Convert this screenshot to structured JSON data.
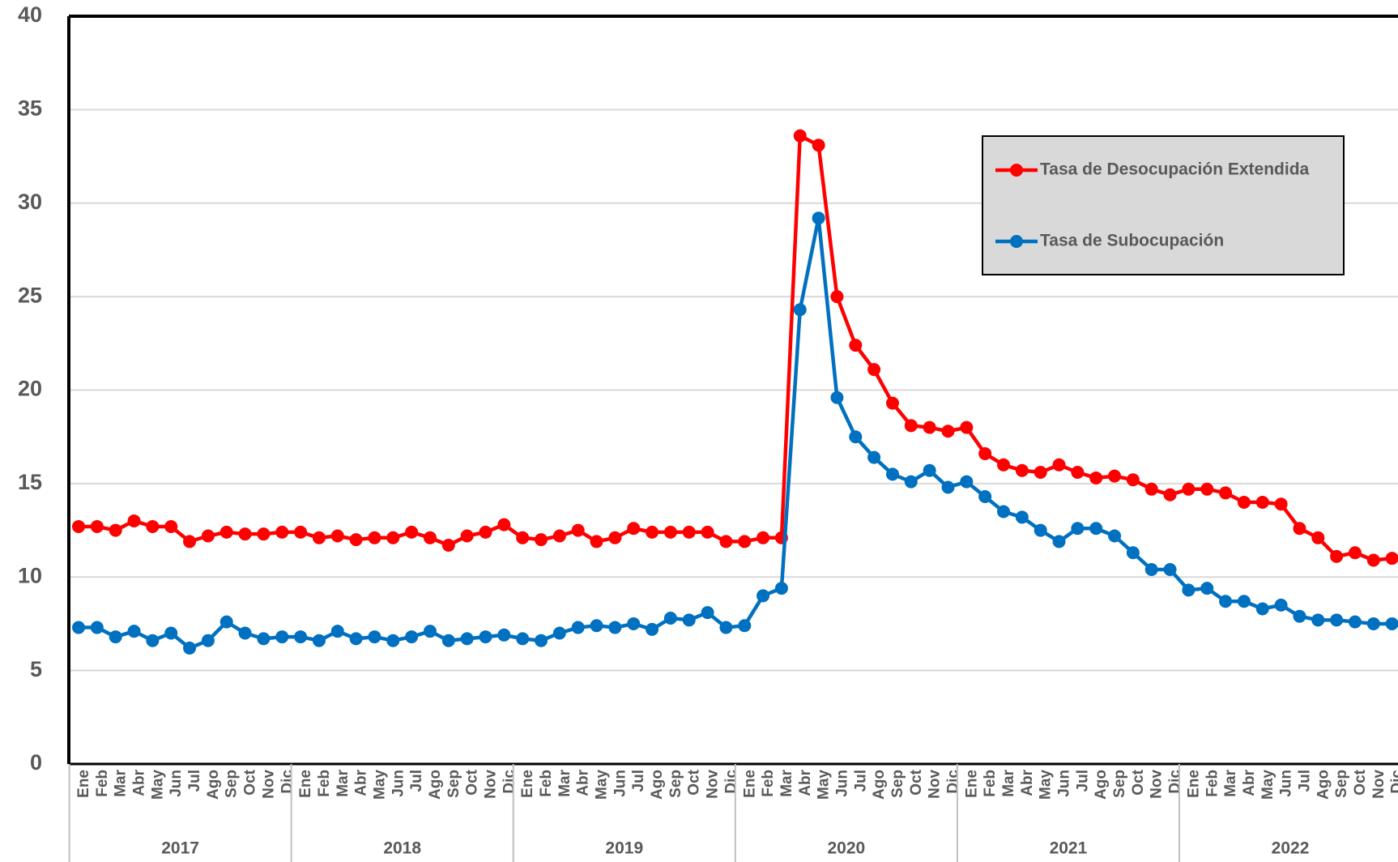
{
  "chart_data": {
    "type": "line",
    "categories": [
      "Ene",
      "Feb",
      "Mar",
      "Abr",
      "May",
      "Jun",
      "Jul",
      "Ago",
      "Sep",
      "Oct",
      "Nov",
      "Dic",
      "Ene",
      "Feb",
      "Mar",
      "Abr",
      "May",
      "Jun",
      "Jul",
      "Ago",
      "Sep",
      "Oct",
      "Nov",
      "Dic",
      "Ene",
      "Feb",
      "Mar",
      "Abr",
      "May",
      "Jun",
      "Jul",
      "Ago",
      "Sep",
      "Oct",
      "Nov",
      "Dic",
      "Ene",
      "Feb",
      "Mar",
      "Abr",
      "May",
      "Jun",
      "Jul",
      "Ago",
      "Sep",
      "Oct",
      "Nov",
      "Dic",
      "Ene",
      "Feb",
      "Mar",
      "Abr",
      "May",
      "Jun",
      "Jul",
      "Ago",
      "Sep",
      "Oct",
      "Nov",
      "Dic",
      "Ene",
      "Feb",
      "Mar",
      "Abr",
      "May",
      "Jun",
      "Jul",
      "Ago",
      "Sep",
      "Oct",
      "Nov",
      "Dic"
    ],
    "years": [
      "2017",
      "2018",
      "2019",
      "2020",
      "2021",
      "2022"
    ],
    "series": [
      {
        "name": "Tasa de Desocupación Extendida",
        "color": "#ff0000",
        "values": [
          12.7,
          12.7,
          12.5,
          13.0,
          12.7,
          12.7,
          11.9,
          12.2,
          12.4,
          12.3,
          12.3,
          12.4,
          12.4,
          12.1,
          12.2,
          12.0,
          12.1,
          12.1,
          12.4,
          12.1,
          11.7,
          12.2,
          12.4,
          12.8,
          12.1,
          12.0,
          12.2,
          12.5,
          11.9,
          12.1,
          12.6,
          12.4,
          12.4,
          12.4,
          12.4,
          11.9,
          11.9,
          12.1,
          12.1,
          33.6,
          33.1,
          25.0,
          22.4,
          21.1,
          19.3,
          18.1,
          18.0,
          17.8,
          18.0,
          16.6,
          16.0,
          15.7,
          15.6,
          16.0,
          15.6,
          15.3,
          15.4,
          15.2,
          14.7,
          14.4,
          14.7,
          14.7,
          14.5,
          14.0,
          14.0,
          13.9,
          12.6,
          12.1,
          11.1,
          11.3,
          10.9,
          11.0
        ]
      },
      {
        "name": "Tasa de Subocupación",
        "color": "#0070c0",
        "values": [
          7.3,
          7.3,
          6.8,
          7.1,
          6.6,
          7.0,
          6.2,
          6.6,
          7.6,
          7.0,
          6.7,
          6.8,
          6.8,
          6.6,
          7.1,
          6.7,
          6.8,
          6.6,
          6.8,
          7.1,
          6.6,
          6.7,
          6.8,
          6.9,
          6.7,
          6.6,
          7.0,
          7.3,
          7.4,
          7.3,
          7.5,
          7.2,
          7.8,
          7.7,
          8.1,
          7.3,
          7.4,
          9.0,
          9.4,
          24.3,
          29.2,
          19.6,
          17.5,
          16.4,
          15.5,
          15.1,
          15.7,
          14.8,
          15.1,
          14.3,
          13.5,
          13.2,
          12.5,
          11.9,
          12.6,
          12.6,
          12.2,
          11.3,
          10.4,
          10.4,
          9.3,
          9.4,
          8.7,
          8.7,
          8.3,
          8.5,
          7.9,
          7.7,
          7.7,
          7.6,
          7.5,
          7.5
        ]
      }
    ],
    "ylim": [
      0,
      40
    ],
    "yticks": [
      0,
      5,
      10,
      15,
      20,
      25,
      30,
      35,
      40
    ],
    "grid": true
  }
}
